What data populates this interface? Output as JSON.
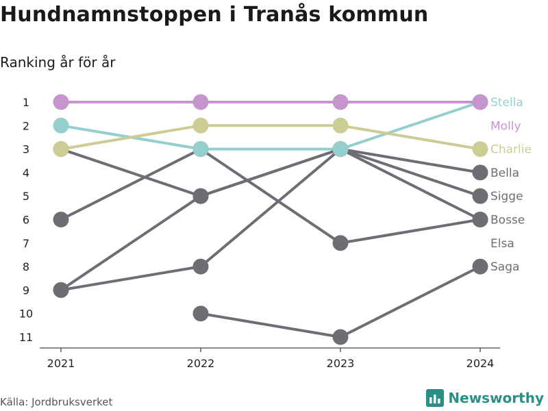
{
  "title": "Hundnamnstoppen i Tranås kommun",
  "subtitle": "Ranking år för år",
  "source": "Källa: Jordbruksverket",
  "brand": {
    "name": "Newsworthy",
    "color": "#2a8f86",
    "icon": "bar-chart-icon"
  },
  "chart_data": {
    "type": "line",
    "chart_kind": "bump chart (rank)",
    "x": [
      "2021",
      "2022",
      "2023",
      "2024"
    ],
    "y_ticks": [
      "1",
      "2",
      "3",
      "4",
      "5",
      "6",
      "7",
      "8",
      "9",
      "10",
      "11"
    ],
    "ylim": [
      1,
      11
    ],
    "y_inverted": true,
    "grid": false,
    "legend": "direct labels at right end",
    "series": [
      {
        "name": "Stella",
        "ranks": [
          2,
          3,
          3,
          1
        ],
        "color": "#95cfcd",
        "highlight": true
      },
      {
        "name": "Molly",
        "ranks": [
          1,
          1,
          1,
          1
        ],
        "color": "#c695cd",
        "highlight": true
      },
      {
        "name": "Charlie",
        "ranks": [
          3,
          2,
          2,
          3
        ],
        "color": "#cccc95",
        "highlight": true
      },
      {
        "name": "Bella",
        "ranks": [
          3,
          5,
          3,
          4
        ],
        "color": "#6e6d74",
        "highlight": false
      },
      {
        "name": "Sigge",
        "ranks": [
          9,
          5,
          3,
          5
        ],
        "color": "#6e6d74",
        "highlight": false
      },
      {
        "name": "Bosse",
        "ranks": [
          6,
          3,
          7,
          6
        ],
        "color": "#6e6d74",
        "highlight": false
      },
      {
        "name": "Elsa",
        "ranks": [
          9,
          8,
          3,
          6
        ],
        "color": "#6e6d74",
        "highlight": false
      },
      {
        "name": "Saga",
        "ranks": [
          null,
          10,
          11,
          8
        ],
        "color": "#6e6d74",
        "highlight": false
      }
    ]
  }
}
